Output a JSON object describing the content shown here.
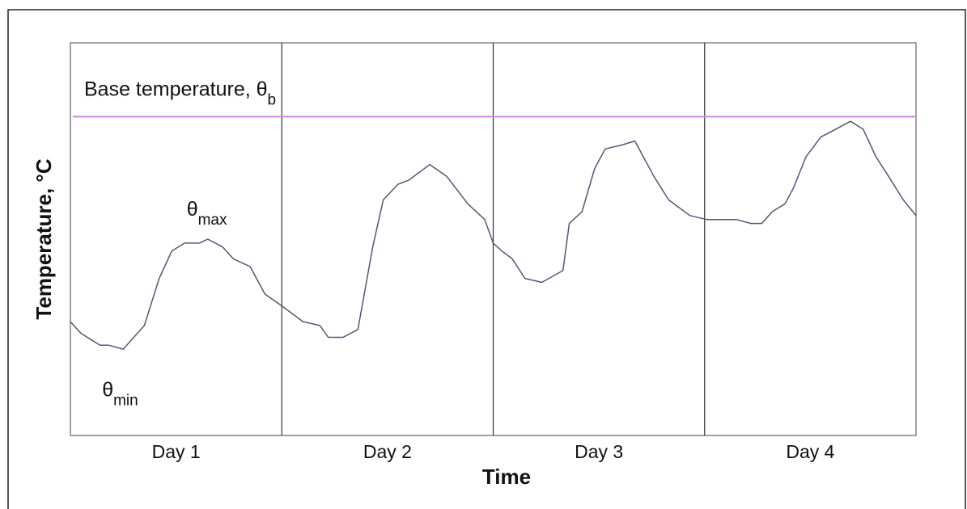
{
  "chart_data": {
    "type": "line",
    "ylabel": "Temperature, °C",
    "xlabel": "Time",
    "categories": [
      "Day 1",
      "Day 2",
      "Day 3",
      "Day 4"
    ],
    "day_dividers": [
      1,
      2,
      3
    ],
    "xlim": [
      0,
      4
    ],
    "ylim": [
      0,
      100
    ],
    "base_line": {
      "label_main": "Base temperature, θ",
      "label_sub": "b",
      "value": 81.2,
      "color": "#cc88dd"
    },
    "annotations": [
      {
        "main": "θ",
        "sub": "max",
        "x": 0.55,
        "y": 56
      },
      {
        "main": "θ",
        "sub": "min",
        "x": 0.15,
        "y": 10
      }
    ],
    "series": [
      {
        "color": "#555577",
        "x": [
          0,
          0.05,
          0.14,
          0.18,
          0.25,
          0.35,
          0.42,
          0.48,
          0.54,
          0.61,
          0.65,
          0.72,
          0.77,
          0.85,
          0.92,
          1.0,
          1.1,
          1.18,
          1.22,
          1.29,
          1.36,
          1.43,
          1.48,
          1.55,
          1.6,
          1.7,
          1.78,
          1.88,
          1.96,
          2.0,
          2.04,
          2.09,
          2.15,
          2.23,
          2.33,
          2.36,
          2.42,
          2.48,
          2.53,
          2.61,
          2.67,
          2.76,
          2.83,
          2.93,
          3.01,
          3.08,
          3.15,
          3.22,
          3.27,
          3.32,
          3.38,
          3.42,
          3.48,
          3.55,
          3.62,
          3.69,
          3.75,
          3.81,
          3.87,
          3.94,
          4.0
        ],
        "y": [
          29,
          26,
          23,
          23,
          22,
          28,
          40,
          47,
          49,
          49,
          50,
          48,
          45,
          43,
          36,
          33,
          29,
          28,
          25,
          25,
          27,
          48,
          60,
          64,
          65,
          69,
          66,
          59,
          55,
          49,
          47,
          45,
          40,
          39,
          42,
          54,
          57,
          68,
          73,
          74,
          75,
          66,
          60,
          56,
          55,
          55,
          55,
          54,
          54,
          57,
          59,
          63,
          71,
          76,
          78,
          80,
          78,
          71,
          66,
          60,
          56
        ]
      }
    ]
  }
}
